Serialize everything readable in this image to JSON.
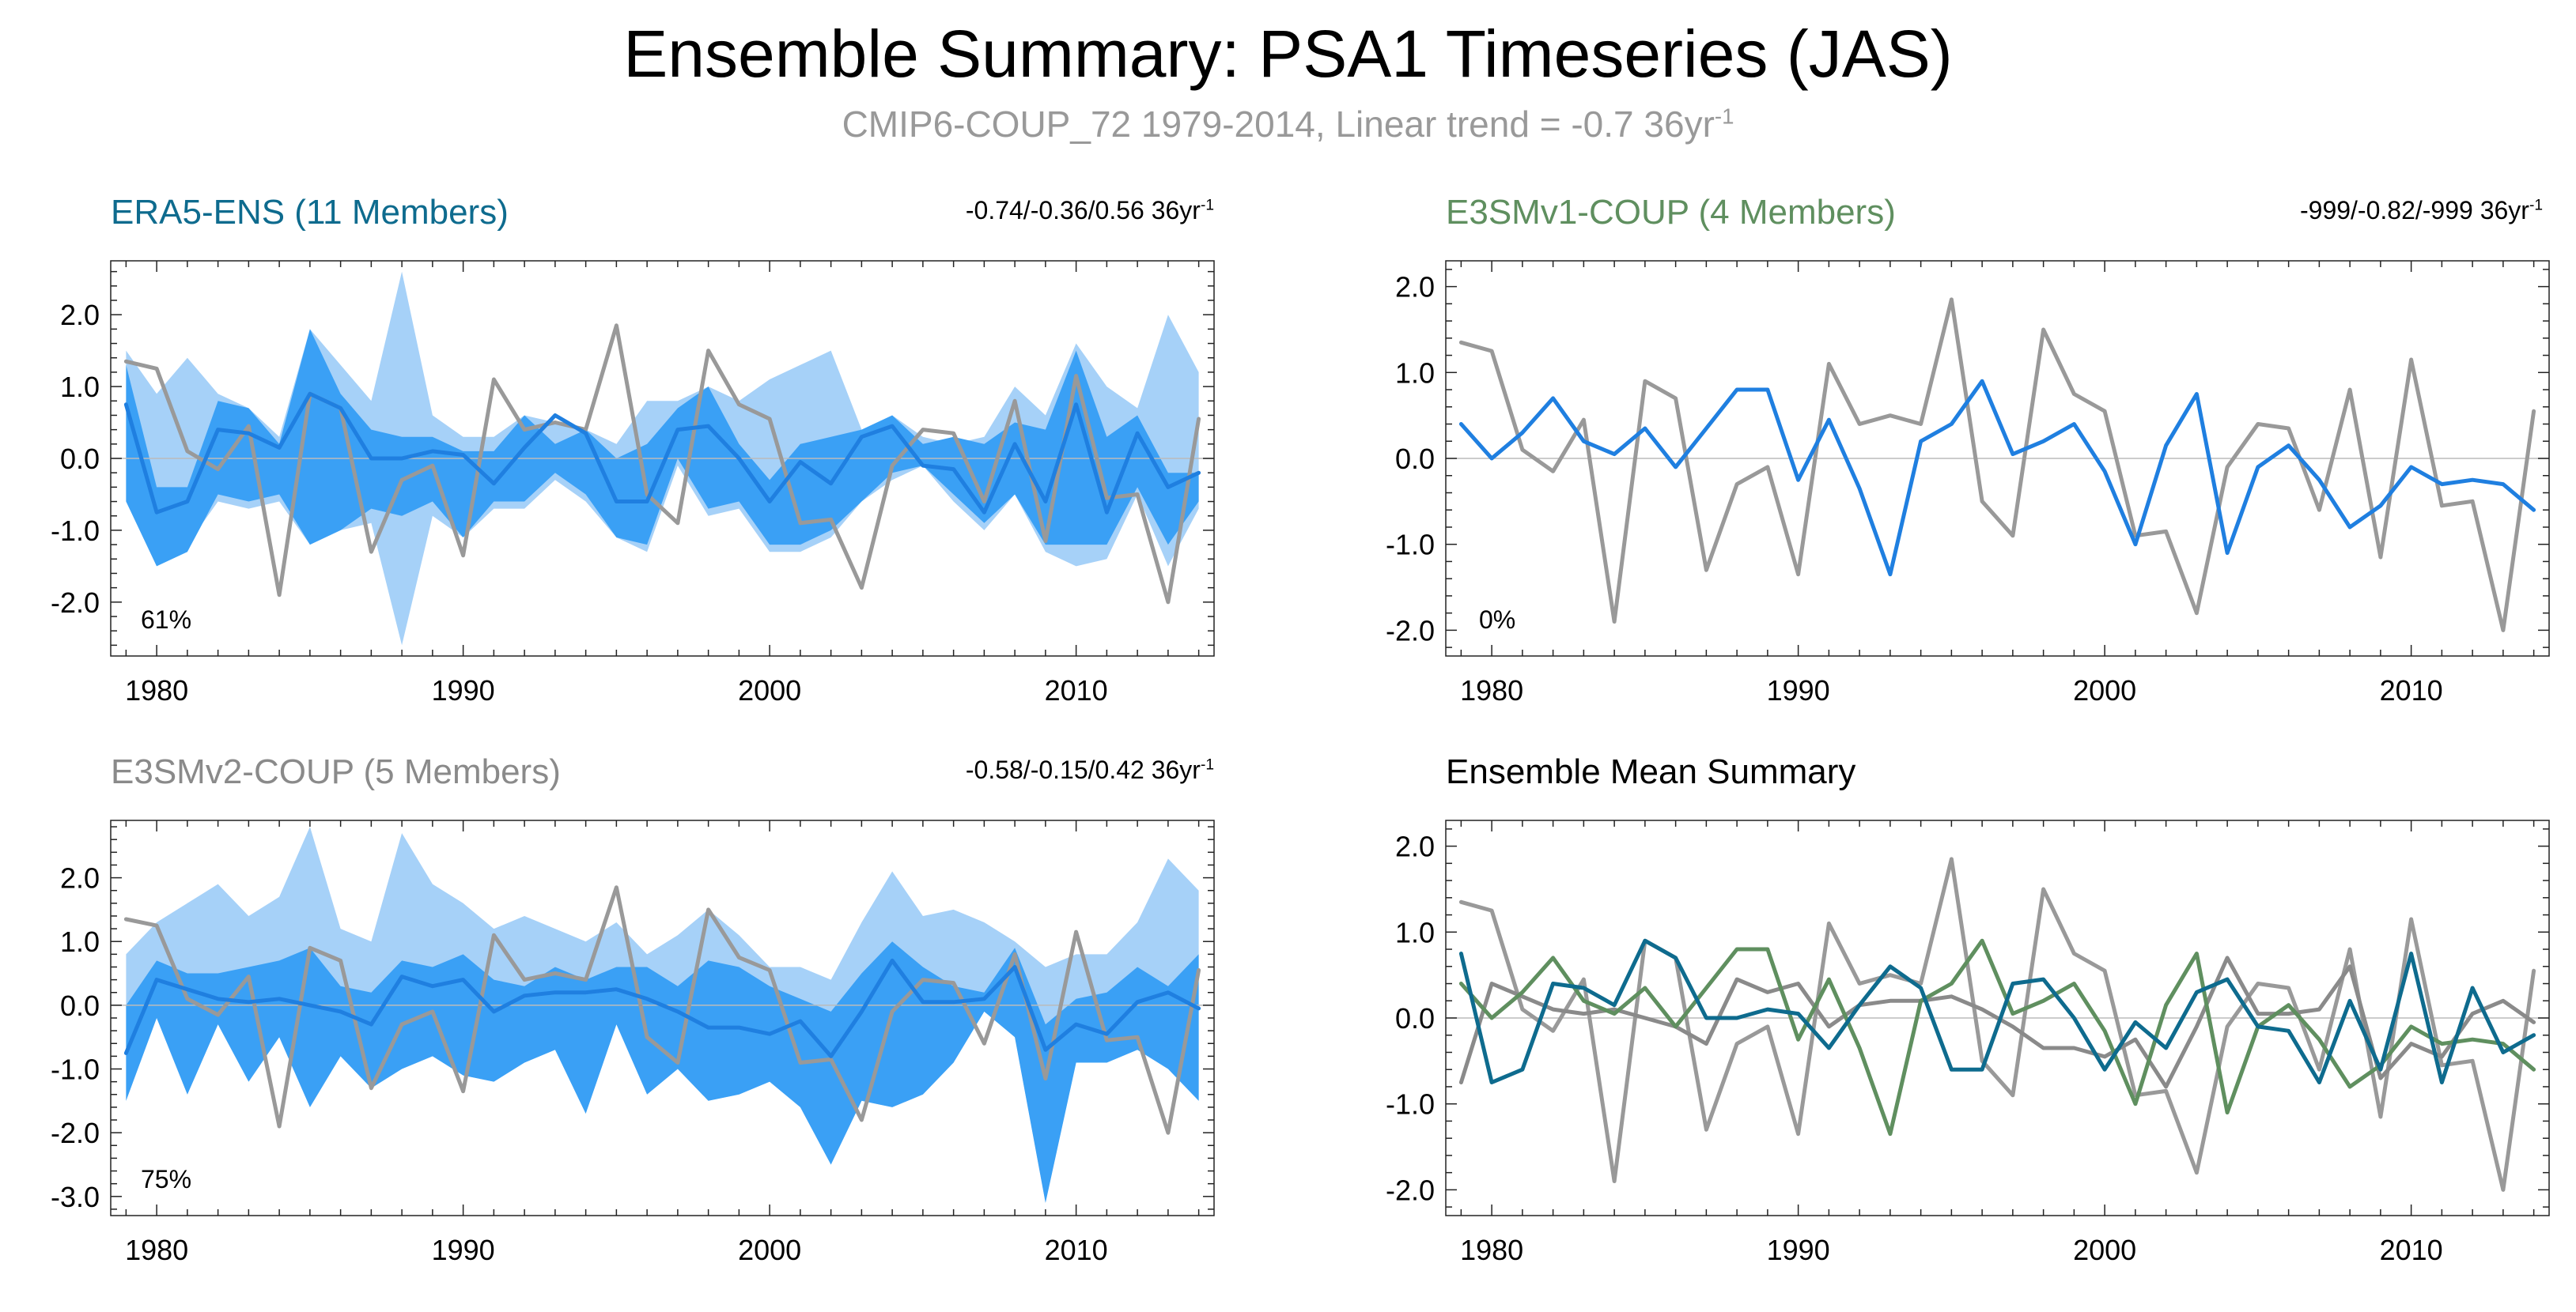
{
  "title": "Ensemble Summary: PSA1 Timeseries (JAS)",
  "subtitle": {
    "text": "CMIP6-COUP_72 1979-2014, Linear trend = -0.7 36yr",
    "sup": "-1"
  },
  "colors": {
    "era5": "#0e6b8e",
    "e3smv1": "#5f8f5f",
    "e3smv2": "#8a8a8a",
    "obs_gray": "#999999",
    "band_light": "#a6d1f8",
    "band_dark": "#3aa0f5",
    "mean_blue": "#1f7fe0",
    "zero_line": "#bbbbbb"
  },
  "chart_data": [
    {
      "id": "era5",
      "type": "line",
      "title": "ERA5-ENS (11 Members)",
      "trend_text": "-0.74/-0.36/0.56 36yr",
      "trend_sup": "-1",
      "percent_label": "61%",
      "x_start": 1979,
      "x_end": 2014,
      "xlim": [
        1978.5,
        2014.5
      ],
      "ylim": [
        -2.75,
        2.75
      ],
      "yticks": [
        -2.0,
        -1.0,
        0.0,
        1.0,
        2.0
      ],
      "ytick_labels": [
        "-2.0",
        "-1.0",
        "0.0",
        "1.0",
        "2.0"
      ],
      "xticks": [
        1980,
        1990,
        2000,
        2010
      ],
      "xtick_labels": [
        "1980",
        "1990",
        "2000",
        "2010"
      ],
      "series": [
        {
          "name": "ensemble range",
          "kind": "band",
          "color": "light",
          "upper": [
            1.5,
            0.9,
            1.4,
            0.9,
            0.7,
            0.3,
            1.8,
            1.3,
            0.8,
            2.6,
            0.6,
            0.3,
            0.3,
            0.6,
            0.5,
            0.4,
            0.2,
            0.8,
            0.8,
            1.0,
            0.8,
            1.1,
            1.3,
            1.5,
            0.4,
            0.6,
            0.3,
            0.2,
            0.3,
            1.0,
            0.6,
            1.6,
            1.0,
            0.7,
            2.0,
            1.2
          ],
          "lower": [
            -0.6,
            -1.5,
            -1.2,
            -0.6,
            -0.7,
            -0.6,
            -1.2,
            -1.0,
            -0.9,
            -2.6,
            -0.8,
            -1.1,
            -0.7,
            -0.7,
            -0.3,
            -0.6,
            -1.1,
            -1.3,
            -0.1,
            -0.8,
            -0.7,
            -1.3,
            -1.3,
            -1.1,
            -0.6,
            -0.3,
            -0.1,
            -0.6,
            -1.0,
            -0.5,
            -1.3,
            -1.5,
            -1.4,
            -0.5,
            -1.5,
            -0.7
          ]
        },
        {
          "name": "inner range",
          "kind": "band",
          "color": "dark",
          "upper": [
            1.3,
            -0.4,
            -0.4,
            0.8,
            0.7,
            0.2,
            1.8,
            0.9,
            0.4,
            0.3,
            0.3,
            0.1,
            0.1,
            0.6,
            0.2,
            0.4,
            0.0,
            0.2,
            0.7,
            1.0,
            0.2,
            -0.3,
            0.2,
            0.3,
            0.4,
            0.6,
            0.2,
            0.3,
            0.2,
            0.5,
            0.4,
            1.5,
            0.3,
            0.6,
            -0.2,
            -0.2
          ],
          "lower": [
            -0.6,
            -1.5,
            -1.3,
            -0.5,
            -0.6,
            -0.5,
            -1.2,
            -1.0,
            -0.7,
            -0.8,
            -0.6,
            -1.1,
            -0.6,
            -0.6,
            -0.2,
            -0.5,
            -1.1,
            -1.2,
            0.0,
            -0.7,
            -0.6,
            -1.2,
            -1.2,
            -1.0,
            -0.6,
            -0.2,
            -0.1,
            -0.5,
            -0.9,
            -0.5,
            -1.2,
            -1.2,
            -1.2,
            -0.4,
            -1.2,
            -0.6
          ]
        },
        {
          "name": "observed",
          "kind": "line",
          "color": "obs_gray",
          "values": [
            1.35,
            1.25,
            0.1,
            -0.15,
            0.45,
            -1.9,
            0.9,
            0.7,
            -1.3,
            -0.3,
            -0.1,
            -1.35,
            1.1,
            0.4,
            0.5,
            0.4,
            1.85,
            -0.5,
            -0.9,
            1.5,
            0.75,
            0.55,
            -0.9,
            -0.85,
            -1.8,
            -0.1,
            0.4,
            0.35,
            -0.6,
            0.8,
            -1.15,
            1.15,
            -0.55,
            -0.5,
            -2.0,
            0.55
          ]
        },
        {
          "name": "ensemble mean",
          "kind": "line",
          "color": "mean_blue",
          "values": [
            0.75,
            -0.75,
            -0.6,
            0.4,
            0.35,
            0.15,
            0.9,
            0.7,
            0.0,
            0.0,
            0.1,
            0.05,
            -0.35,
            0.15,
            0.6,
            0.35,
            -0.6,
            -0.6,
            0.4,
            0.45,
            0.0,
            -0.6,
            -0.05,
            -0.35,
            0.3,
            0.45,
            -0.1,
            -0.15,
            -0.75,
            0.2,
            -0.6,
            0.75,
            -0.75,
            0.35,
            -0.4,
            -0.2
          ]
        }
      ]
    },
    {
      "id": "e3smv1",
      "type": "line",
      "title": "E3SMv1-COUP (4 Members)",
      "trend_text": "-999/-0.82/-999 36yr",
      "trend_sup": "-1",
      "percent_label": "0%",
      "x_start": 1979,
      "x_end": 2014,
      "xlim": [
        1978.5,
        2014.5
      ],
      "ylim": [
        -2.3,
        2.3
      ],
      "yticks": [
        -2.0,
        -1.0,
        0.0,
        1.0,
        2.0
      ],
      "ytick_labels": [
        "-2.0",
        "-1.0",
        "0.0",
        "1.0",
        "2.0"
      ],
      "xticks": [
        1980,
        1990,
        2000,
        2010
      ],
      "xtick_labels": [
        "1980",
        "1990",
        "2000",
        "2010"
      ],
      "series": [
        {
          "name": "observed",
          "kind": "line",
          "color": "obs_gray",
          "values": [
            1.35,
            1.25,
            0.1,
            -0.15,
            0.45,
            -1.9,
            0.9,
            0.7,
            -1.3,
            -0.3,
            -0.1,
            -1.35,
            1.1,
            0.4,
            0.5,
            0.4,
            1.85,
            -0.5,
            -0.9,
            1.5,
            0.75,
            0.55,
            -0.9,
            -0.85,
            -1.8,
            -0.1,
            0.4,
            0.35,
            -0.6,
            0.8,
            -1.15,
            1.15,
            -0.55,
            -0.5,
            -2.0,
            0.55
          ]
        },
        {
          "name": "ensemble mean",
          "kind": "line",
          "color": "mean_blue",
          "values": [
            0.4,
            0.0,
            0.3,
            0.7,
            0.2,
            0.05,
            0.35,
            -0.1,
            0.35,
            0.8,
            0.8,
            -0.25,
            0.45,
            -0.35,
            -1.35,
            0.2,
            0.4,
            0.9,
            0.05,
            0.2,
            0.4,
            -0.15,
            -1.0,
            0.15,
            0.75,
            -1.1,
            -0.1,
            0.15,
            -0.25,
            -0.8,
            -0.55,
            -0.1,
            -0.3,
            -0.25,
            -0.3,
            -0.6
          ]
        }
      ]
    },
    {
      "id": "e3smv2",
      "type": "line",
      "title": "E3SMv2-COUP (5 Members)",
      "trend_text": "-0.58/-0.15/0.42 36yr",
      "trend_sup": "-1",
      "percent_label": "75%",
      "x_start": 1979,
      "x_end": 2014,
      "xlim": [
        1978.5,
        2014.5
      ],
      "ylim": [
        -3.3,
        2.9
      ],
      "yticks": [
        -3.0,
        -2.0,
        -1.0,
        0.0,
        1.0,
        2.0
      ],
      "ytick_labels": [
        "-3.0",
        "-2.0",
        "-1.0",
        "0.0",
        "1.0",
        "2.0"
      ],
      "xticks": [
        1980,
        1990,
        2000,
        2010
      ],
      "xtick_labels": [
        "1980",
        "1990",
        "2000",
        "2010"
      ],
      "series": [
        {
          "name": "ensemble range",
          "kind": "band",
          "color": "light",
          "upper": [
            0.8,
            1.3,
            1.6,
            1.9,
            1.4,
            1.7,
            2.8,
            1.2,
            1.0,
            2.7,
            1.9,
            1.6,
            1.2,
            1.4,
            1.2,
            1.0,
            1.3,
            0.8,
            1.1,
            1.5,
            1.1,
            0.6,
            0.6,
            0.4,
            1.3,
            2.1,
            1.4,
            1.5,
            1.3,
            1.0,
            0.6,
            0.8,
            0.8,
            1.3,
            2.3,
            1.8
          ],
          "lower": [
            -1.5,
            -0.2,
            -1.4,
            -0.3,
            -1.2,
            -0.5,
            -1.6,
            -0.8,
            -1.3,
            -1.0,
            -0.8,
            -1.1,
            -1.2,
            -0.9,
            -0.7,
            -1.7,
            -0.3,
            -1.4,
            -1.0,
            -1.5,
            -1.4,
            -1.2,
            -1.6,
            -2.5,
            -1.5,
            -1.6,
            -1.4,
            -0.9,
            -0.1,
            -0.5,
            -3.1,
            -0.9,
            -0.9,
            -0.7,
            -1.0,
            -1.5
          ]
        },
        {
          "name": "inner range",
          "kind": "band",
          "color": "dark",
          "upper": [
            0.0,
            0.7,
            0.5,
            0.5,
            0.6,
            0.7,
            0.9,
            0.3,
            0.2,
            0.7,
            0.6,
            0.8,
            0.4,
            0.3,
            0.6,
            0.4,
            0.6,
            0.6,
            0.3,
            0.7,
            0.6,
            0.3,
            0.1,
            -0.1,
            0.5,
            1.0,
            0.6,
            0.3,
            0.2,
            0.9,
            -0.3,
            0.1,
            0.2,
            0.6,
            0.3,
            0.8
          ],
          "lower": [
            -1.5,
            -0.2,
            -1.4,
            -0.3,
            -1.2,
            -0.5,
            -1.6,
            -0.8,
            -1.3,
            -1.0,
            -0.8,
            -1.1,
            -1.2,
            -0.9,
            -0.7,
            -1.7,
            -0.3,
            -1.4,
            -1.0,
            -1.5,
            -1.4,
            -1.2,
            -1.6,
            -2.5,
            -1.5,
            -1.6,
            -1.4,
            -0.9,
            -0.1,
            -0.5,
            -3.1,
            -0.9,
            -0.9,
            -0.7,
            -1.0,
            -1.5
          ]
        },
        {
          "name": "observed",
          "kind": "line",
          "color": "obs_gray",
          "values": [
            1.35,
            1.25,
            0.1,
            -0.15,
            0.45,
            -1.9,
            0.9,
            0.7,
            -1.3,
            -0.3,
            -0.1,
            -1.35,
            1.1,
            0.4,
            0.5,
            0.4,
            1.85,
            -0.5,
            -0.9,
            1.5,
            0.75,
            0.55,
            -0.9,
            -0.85,
            -1.8,
            -0.1,
            0.4,
            0.35,
            -0.6,
            0.8,
            -1.15,
            1.15,
            -0.55,
            -0.5,
            -2.0,
            0.55
          ]
        },
        {
          "name": "ensemble mean",
          "kind": "line",
          "color": "mean_blue",
          "values": [
            -0.75,
            0.4,
            0.25,
            0.1,
            0.05,
            0.1,
            0.0,
            -0.1,
            -0.3,
            0.45,
            0.3,
            0.4,
            -0.1,
            0.15,
            0.2,
            0.2,
            0.25,
            0.1,
            -0.1,
            -0.35,
            -0.35,
            -0.45,
            -0.25,
            -0.8,
            -0.1,
            0.7,
            0.05,
            0.05,
            0.1,
            0.6,
            -0.7,
            -0.3,
            -0.45,
            0.05,
            0.2,
            -0.05
          ]
        }
      ]
    },
    {
      "id": "mean-summary",
      "type": "line",
      "title": "Ensemble Mean Summary",
      "x_start": 1979,
      "x_end": 2014,
      "xlim": [
        1978.5,
        2014.5
      ],
      "ylim": [
        -2.3,
        2.3
      ],
      "yticks": [
        -2.0,
        -1.0,
        0.0,
        1.0,
        2.0
      ],
      "ytick_labels": [
        "-2.0",
        "-1.0",
        "0.0",
        "1.0",
        "2.0"
      ],
      "xticks": [
        1980,
        1990,
        2000,
        2010
      ],
      "xtick_labels": [
        "1980",
        "1990",
        "2000",
        "2010"
      ],
      "series": [
        {
          "name": "observed",
          "kind": "line",
          "color": "obs_gray",
          "values": [
            1.35,
            1.25,
            0.1,
            -0.15,
            0.45,
            -1.9,
            0.9,
            0.7,
            -1.3,
            -0.3,
            -0.1,
            -1.35,
            1.1,
            0.4,
            0.5,
            0.4,
            1.85,
            -0.5,
            -0.9,
            1.5,
            0.75,
            0.55,
            -0.9,
            -0.85,
            -1.8,
            -0.1,
            0.4,
            0.35,
            -0.6,
            0.8,
            -1.15,
            1.15,
            -0.55,
            -0.5,
            -2.0,
            0.55
          ]
        },
        {
          "name": "E3SMv2-COUP mean",
          "kind": "line",
          "color": "e3smv2",
          "values": [
            -0.75,
            0.4,
            0.25,
            0.1,
            0.05,
            0.1,
            0.0,
            -0.1,
            -0.3,
            0.45,
            0.3,
            0.4,
            -0.1,
            0.15,
            0.2,
            0.2,
            0.25,
            0.1,
            -0.1,
            -0.35,
            -0.35,
            -0.45,
            -0.25,
            -0.8,
            -0.1,
            0.7,
            0.05,
            0.05,
            0.1,
            0.6,
            -0.7,
            -0.3,
            -0.45,
            0.05,
            0.2,
            -0.05
          ]
        },
        {
          "name": "E3SMv1-COUP mean",
          "kind": "line",
          "color": "e3smv1",
          "values": [
            0.4,
            0.0,
            0.3,
            0.7,
            0.2,
            0.05,
            0.35,
            -0.1,
            0.35,
            0.8,
            0.8,
            -0.25,
            0.45,
            -0.35,
            -1.35,
            0.2,
            0.4,
            0.9,
            0.05,
            0.2,
            0.4,
            -0.15,
            -1.0,
            0.15,
            0.75,
            -1.1,
            -0.1,
            0.15,
            -0.25,
            -0.8,
            -0.55,
            -0.1,
            -0.3,
            -0.25,
            -0.3,
            -0.6
          ]
        },
        {
          "name": "ERA5-ENS mean",
          "kind": "line",
          "color": "era5",
          "values": [
            0.75,
            -0.75,
            -0.6,
            0.4,
            0.35,
            0.15,
            0.9,
            0.7,
            0.0,
            0.0,
            0.1,
            0.05,
            -0.35,
            0.15,
            0.6,
            0.35,
            -0.6,
            -0.6,
            0.4,
            0.45,
            0.0,
            -0.6,
            -0.05,
            -0.35,
            0.3,
            0.45,
            -0.1,
            -0.15,
            -0.75,
            0.2,
            -0.6,
            0.75,
            -0.75,
            0.35,
            -0.4,
            -0.2
          ]
        }
      ]
    }
  ]
}
